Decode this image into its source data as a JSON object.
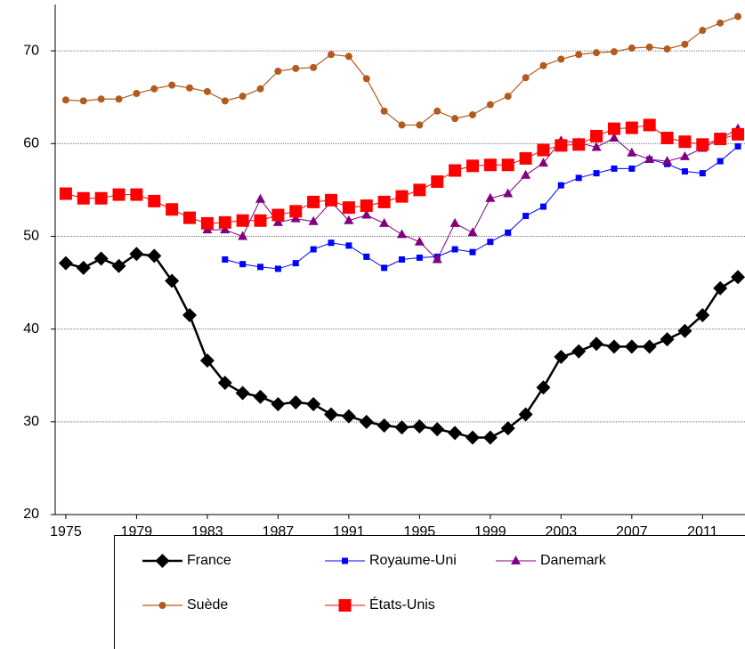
{
  "chart_data": {
    "type": "line",
    "x": [
      1975,
      1976,
      1977,
      1978,
      1979,
      1980,
      1981,
      1982,
      1983,
      1984,
      1985,
      1986,
      1987,
      1988,
      1989,
      1990,
      1991,
      1992,
      1993,
      1994,
      1995,
      1996,
      1997,
      1998,
      1999,
      2000,
      2001,
      2002,
      2003,
      2004,
      2005,
      2006,
      2007,
      2008,
      2009,
      2010,
      2011,
      2012,
      2013
    ],
    "xlim": [
      1974.4,
      2013.4
    ],
    "xticks": [
      1975,
      1979,
      1983,
      1987,
      1991,
      1995,
      1999,
      2003,
      2007,
      2011
    ],
    "ylim": [
      20,
      75
    ],
    "yticks": [
      20,
      30,
      40,
      50,
      60,
      70
    ],
    "grid": true,
    "legend": "bottom",
    "series": [
      {
        "name": "France",
        "color": "#000000",
        "marker": "diamond",
        "values": [
          47.1,
          46.6,
          47.6,
          46.8,
          48.1,
          47.9,
          45.2,
          41.5,
          36.6,
          34.2,
          33.1,
          32.7,
          31.9,
          32.1,
          31.9,
          30.8,
          30.6,
          30.0,
          29.6,
          29.4,
          29.5,
          29.2,
          28.8,
          28.3,
          28.3,
          29.3,
          30.8,
          33.7,
          37.0,
          37.6,
          38.4,
          38.1,
          38.1,
          38.1,
          38.9,
          39.8,
          41.5,
          44.4,
          45.6
        ]
      },
      {
        "name": "Royaume-Uni",
        "color": "#0000ff",
        "marker": "square",
        "values": [
          null,
          null,
          null,
          null,
          null,
          null,
          null,
          null,
          null,
          47.5,
          47.0,
          46.7,
          46.5,
          47.1,
          48.6,
          49.3,
          49.0,
          47.8,
          46.6,
          47.5,
          47.7,
          47.8,
          48.6,
          48.3,
          49.4,
          50.4,
          52.2,
          53.2,
          55.5,
          56.3,
          56.8,
          57.3,
          57.3,
          58.3,
          57.8,
          57.0,
          56.8,
          58.1,
          59.7
        ]
      },
      {
        "name": "Danemark",
        "color": "#800080",
        "marker": "triangle",
        "values": [
          null,
          null,
          null,
          null,
          null,
          null,
          null,
          null,
          50.7,
          50.7,
          50.0,
          54.0,
          51.5,
          51.9,
          51.6,
          53.7,
          51.7,
          52.3,
          51.4,
          50.2,
          49.4,
          47.5,
          51.4,
          50.4,
          54.1,
          54.6,
          56.6,
          57.9,
          60.3,
          60.1,
          59.6,
          60.6,
          59.0,
          58.3,
          58.1,
          58.6,
          59.5,
          60.5,
          61.6
        ]
      },
      {
        "name": "Suède",
        "color": "#b35a1f",
        "marker": "circle",
        "values": [
          64.7,
          64.6,
          64.8,
          64.8,
          65.4,
          65.9,
          66.3,
          66.0,
          65.6,
          64.6,
          65.1,
          65.9,
          67.8,
          68.1,
          68.2,
          69.6,
          69.4,
          67.0,
          63.5,
          62.0,
          62.0,
          63.5,
          62.7,
          63.1,
          64.2,
          65.1,
          67.1,
          68.4,
          69.1,
          69.6,
          69.8,
          69.9,
          70.3,
          70.4,
          70.2,
          70.7,
          72.2,
          73.0,
          73.7
        ]
      },
      {
        "name": "États-Unis",
        "color": "#ff0000",
        "marker": "bigsquare",
        "values": [
          54.6,
          54.1,
          54.1,
          54.5,
          54.5,
          53.8,
          52.9,
          52.0,
          51.4,
          51.5,
          51.7,
          51.7,
          52.3,
          52.7,
          53.7,
          53.9,
          53.1,
          53.3,
          53.7,
          54.3,
          55.0,
          55.9,
          57.1,
          57.6,
          57.7,
          57.7,
          58.4,
          59.3,
          59.8,
          59.9,
          60.8,
          61.6,
          61.7,
          62.0,
          60.6,
          60.2,
          59.9,
          60.5,
          61.0
        ]
      }
    ]
  }
}
